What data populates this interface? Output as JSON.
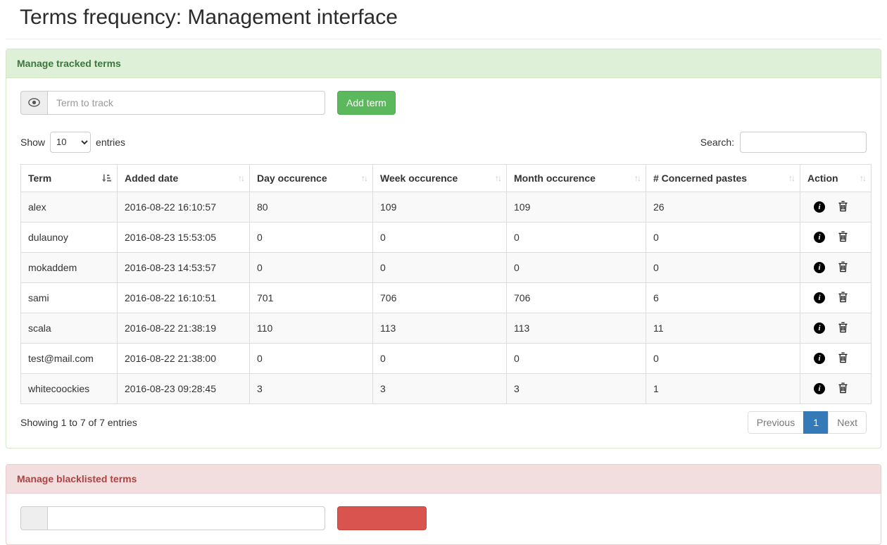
{
  "page": {
    "title": "Terms frequency: Management interface"
  },
  "tracked_panel": {
    "title": "Manage tracked terms",
    "input_placeholder": "Term to track",
    "add_button_label": "Add term",
    "table": {
      "show_label": "Show",
      "page_length": "10",
      "entries_label": "entries",
      "search_label": "Search:",
      "search_value": "",
      "columns": [
        {
          "label": "Term",
          "sort": "asc"
        },
        {
          "label": "Added date",
          "sort": "none"
        },
        {
          "label": "Day occurence",
          "sort": "none"
        },
        {
          "label": "Week occurence",
          "sort": "none"
        },
        {
          "label": "Month occurence",
          "sort": "none"
        },
        {
          "label": "# Concerned pastes",
          "sort": "none"
        },
        {
          "label": "Action",
          "sort": "none"
        }
      ],
      "rows": [
        {
          "term": "alex",
          "added_date": "2016-08-22 16:10:57",
          "day": "80",
          "week": "109",
          "month": "109",
          "pastes": "26"
        },
        {
          "term": "dulaunoy",
          "added_date": "2016-08-23 15:53:05",
          "day": "0",
          "week": "0",
          "month": "0",
          "pastes": "0"
        },
        {
          "term": "mokaddem",
          "added_date": "2016-08-23 14:53:57",
          "day": "0",
          "week": "0",
          "month": "0",
          "pastes": "0"
        },
        {
          "term": "sami",
          "added_date": "2016-08-22 16:10:51",
          "day": "701",
          "week": "706",
          "month": "706",
          "pastes": "6"
        },
        {
          "term": "scala",
          "added_date": "2016-08-22 21:38:19",
          "day": "110",
          "week": "113",
          "month": "113",
          "pastes": "11"
        },
        {
          "term": "test@mail.com",
          "added_date": "2016-08-22 21:38:00",
          "day": "0",
          "week": "0",
          "month": "0",
          "pastes": "0"
        },
        {
          "term": "whitecoockies",
          "added_date": "2016-08-23 09:28:45",
          "day": "3",
          "week": "3",
          "month": "3",
          "pastes": "1"
        }
      ],
      "info": "Showing 1 to 7 of 7 entries",
      "pagination": {
        "previous": "Previous",
        "current_page": "1",
        "next": "Next"
      }
    }
  },
  "blacklist_panel": {
    "title": "Manage blacklisted terms",
    "input_placeholder": "",
    "add_button_label": ""
  },
  "icons": {
    "tracked_addon": "eye-icon",
    "row_actions": [
      "info-icon",
      "trash-icon"
    ],
    "active_sort": "sort-asc-bars-icon",
    "inactive_sort": "sort-both-icon"
  },
  "colors": {
    "success_heading_bg": "#dff0d8",
    "success_heading_text": "#3c763d",
    "success_border": "#d6e9c6",
    "danger_heading_bg": "#f2dede",
    "danger_heading_text": "#a94442",
    "danger_border": "#ebccd1",
    "add_button": "#5cb85c",
    "blacklist_button": "#d9534f",
    "active_page": "#337ab7",
    "stripe_row": "#f9f9f9",
    "table_border": "#dddddd"
  }
}
